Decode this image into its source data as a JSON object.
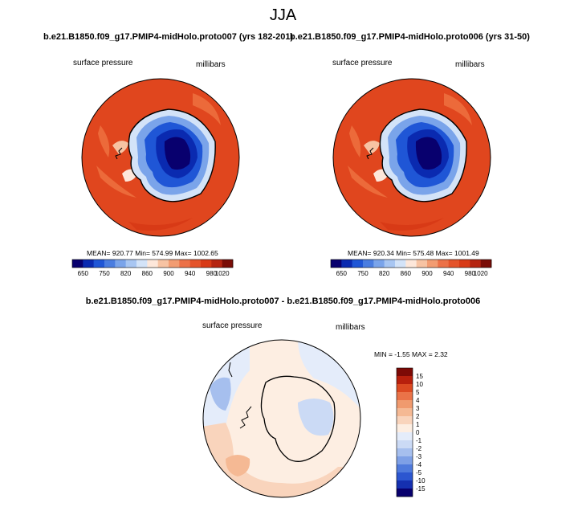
{
  "page": {
    "season": "JJA",
    "diff_title": "b.e21.B1850.f09_g17.PMIP4-midHolo.proto007 - b.e21.B1850.f09_g17.PMIP4-midHolo.proto006"
  },
  "panels": [
    {
      "title": "b.e21.B1850.f09_g17.PMIP4-midHolo.proto007 (yrs 182-201)",
      "variable": "surface pressure",
      "units": "millibars",
      "stats": "MEAN= 920.77  Min= 574.99  Max= 1002.65"
    },
    {
      "title": "b.e21.B1850.f09_g17.PMIP4-midHolo.proto006 (yrs 31-50)",
      "variable": "surface pressure",
      "units": "millibars",
      "stats": "MEAN= 920.34  Min= 575.48  Max= 1001.49"
    },
    {
      "title": "",
      "variable": "surface pressure",
      "units": "millibars",
      "stats": "MIN =  -1.55 MAX =   2.32"
    }
  ],
  "colors": {
    "top_scale": [
      "#08006e",
      "#0a2ab0",
      "#1f56d6",
      "#4a7de0",
      "#7aa4ea",
      "#a8c6f2",
      "#d3e3f8",
      "#fde7da",
      "#f7c3a3",
      "#f29c72",
      "#ec7148",
      "#e4532a",
      "#d83a16",
      "#b52511",
      "#7a0d07"
    ],
    "diff_scale": [
      "#08006e",
      "#1530b0",
      "#2c56d0",
      "#4f7adc",
      "#7ea0e6",
      "#a6bfee",
      "#cbdaf5",
      "#e4ecfa",
      "#fdeee2",
      "#f9d4bc",
      "#f5b994",
      "#f09a6e",
      "#ea7348",
      "#dc4a22",
      "#b8200d",
      "#7d0a06"
    ]
  },
  "chart_data": [
    {
      "type": "heatmap",
      "projection": "south-polar-stereographic",
      "title": "b.e21.B1850.f09_g17.PMIP4-midHolo.proto007 (yrs 182-201)",
      "variable": "surface pressure",
      "units": "millibars",
      "mean": 920.77,
      "min": 574.99,
      "max": 1002.65,
      "colorbar_labels": [
        "650",
        "750",
        "820",
        "860",
        "900",
        "940",
        "980",
        "1020"
      ],
      "contour_levels": [
        650,
        700,
        750,
        800,
        820,
        840,
        860,
        880,
        900,
        920,
        940,
        960,
        980,
        1000,
        1020
      ]
    },
    {
      "type": "heatmap",
      "projection": "south-polar-stereographic",
      "title": "b.e21.B1850.f09_g17.PMIP4-midHolo.proto006 (yrs 31-50)",
      "variable": "surface pressure",
      "units": "millibars",
      "mean": 920.34,
      "min": 575.48,
      "max": 1001.49,
      "colorbar_labels": [
        "650",
        "750",
        "820",
        "860",
        "900",
        "940",
        "980",
        "1020"
      ],
      "contour_levels": [
        650,
        700,
        750,
        800,
        820,
        840,
        860,
        880,
        900,
        920,
        940,
        960,
        980,
        1000,
        1020
      ]
    },
    {
      "type": "heatmap",
      "projection": "south-polar-stereographic",
      "title": "b.e21.B1850.f09_g17.PMIP4-midHolo.proto007 - b.e21.B1850.f09_g17.PMIP4-midHolo.proto006",
      "variable": "surface pressure",
      "units": "millibars",
      "min": -1.55,
      "max": 2.32,
      "colorbar_labels": [
        "15",
        "10",
        "5",
        "4",
        "3",
        "2",
        "1",
        "0",
        "-1",
        "-2",
        "-3",
        "-4",
        "-5",
        "-10",
        "-15"
      ],
      "contour_levels": [
        -15,
        -10,
        -5,
        -4,
        -3,
        -2,
        -1,
        0,
        1,
        2,
        3,
        4,
        5,
        10,
        15
      ]
    }
  ]
}
